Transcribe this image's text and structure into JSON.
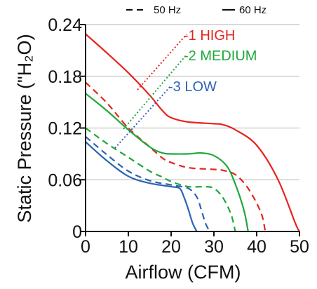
{
  "chart_data": {
    "type": "line",
    "xlabel": "Airflow (CFM)",
    "ylabel": "Static Pressure (\"H₂O)",
    "xlim": [
      0,
      50
    ],
    "ylim": [
      0,
      0.24
    ],
    "x_ticks": [
      "0",
      "10",
      "20",
      "30",
      "40",
      "50"
    ],
    "y_ticks": [
      "0",
      "0.06",
      "0.12",
      "0.18",
      "0.24"
    ],
    "y_tick_values": [
      0,
      0.06,
      0.12,
      0.18,
      0.24
    ],
    "grid": "horizontal",
    "legend": {
      "placement": "top",
      "items": [
        {
          "label": "50 Hz",
          "style": "dashed"
        },
        {
          "label": "60 Hz",
          "style": "solid"
        }
      ]
    },
    "series": [
      {
        "name": "-1 HIGH",
        "color": "#e8231f",
        "hz60": [
          [
            0,
            0.229
          ],
          [
            5,
            0.207
          ],
          [
            10,
            0.184
          ],
          [
            15,
            0.158
          ],
          [
            18,
            0.14
          ],
          [
            20,
            0.132
          ],
          [
            24,
            0.127
          ],
          [
            30,
            0.125
          ],
          [
            32,
            0.124
          ],
          [
            35,
            0.118
          ],
          [
            40,
            0.1
          ],
          [
            45,
            0.06
          ],
          [
            49,
            0.01
          ],
          [
            50,
            0
          ]
        ],
        "hz50": [
          [
            0,
            0.173
          ],
          [
            5,
            0.149
          ],
          [
            10,
            0.12
          ],
          [
            15,
            0.098
          ],
          [
            18,
            0.085
          ],
          [
            20,
            0.08
          ],
          [
            24,
            0.074
          ],
          [
            30,
            0.072
          ],
          [
            32,
            0.071
          ],
          [
            35,
            0.066
          ],
          [
            38,
            0.05
          ],
          [
            41,
            0.022
          ],
          [
            42,
            0
          ]
        ]
      },
      {
        "name": "-2 MEDIUM",
        "color": "#1ea83a",
        "hz60": [
          [
            0,
            0.16
          ],
          [
            5,
            0.14
          ],
          [
            10,
            0.118
          ],
          [
            15,
            0.098
          ],
          [
            18,
            0.091
          ],
          [
            20,
            0.09
          ],
          [
            24,
            0.09
          ],
          [
            27,
            0.091
          ],
          [
            30,
            0.088
          ],
          [
            33,
            0.076
          ],
          [
            35,
            0.055
          ],
          [
            37,
            0.025
          ],
          [
            38,
            0
          ]
        ],
        "hz50": [
          [
            0,
            0.12
          ],
          [
            5,
            0.102
          ],
          [
            10,
            0.086
          ],
          [
            15,
            0.07
          ],
          [
            18,
            0.063
          ],
          [
            20,
            0.058
          ],
          [
            24,
            0.052
          ],
          [
            28,
            0.052
          ],
          [
            30,
            0.05
          ],
          [
            32,
            0.04
          ],
          [
            34,
            0.02
          ],
          [
            35,
            0
          ]
        ]
      },
      {
        "name": "-3 LOW",
        "color": "#2d64b4",
        "hz60": [
          [
            0,
            0.104
          ],
          [
            5,
            0.082
          ],
          [
            10,
            0.064
          ],
          [
            15,
            0.056
          ],
          [
            20,
            0.052
          ],
          [
            22,
            0.05
          ],
          [
            23,
            0.04
          ],
          [
            24,
            0.026
          ],
          [
            25,
            0.01
          ],
          [
            26,
            0
          ]
        ],
        "hz50": [
          [
            0,
            0.11
          ],
          [
            5,
            0.089
          ],
          [
            10,
            0.07
          ],
          [
            15,
            0.059
          ],
          [
            20,
            0.054
          ],
          [
            24,
            0.05
          ],
          [
            26,
            0.04
          ],
          [
            27,
            0.026
          ],
          [
            28,
            0.01
          ],
          [
            29,
            0
          ]
        ]
      }
    ]
  }
}
